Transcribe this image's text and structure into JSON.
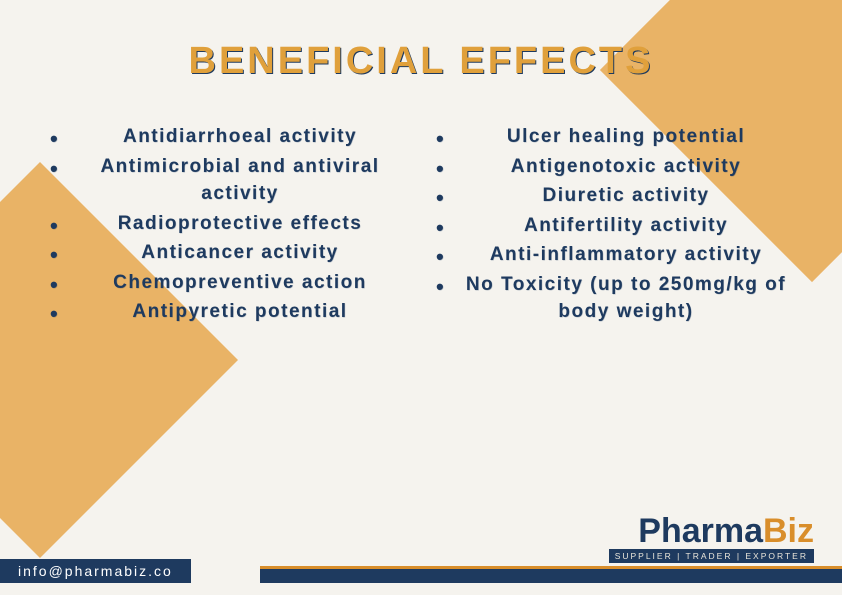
{
  "title": "BENEFICIAL EFFECTS",
  "colors": {
    "background": "#f5f3ee",
    "accent_shape": "#e9b366",
    "title_color": "#e0a03b",
    "title_shadow": "#1e3a5f",
    "text_color": "#1e3a5f",
    "footer_bg": "#1e3a5f",
    "logo_accent": "#d98e2b"
  },
  "typography": {
    "title_fontsize": 38,
    "title_weight": 900,
    "title_letterspacing": 3,
    "list_fontsize": 19,
    "list_weight": 700,
    "list_letterspacing": 1.5
  },
  "leftColumn": {
    "items": [
      "Antidiarrhoeal activity",
      "Antimicrobial and antiviral activity",
      "Radioprotective effects",
      "Anticancer activity",
      "Chemopreventive action",
      "Antipyretic potential"
    ]
  },
  "rightColumn": {
    "items": [
      "Ulcer healing potential",
      "Antigenotoxic activity",
      "Diuretic activity",
      "Antifertility activity",
      "Anti-inflammatory activity",
      "No Toxicity (up to 250mg/kg of body weight)"
    ]
  },
  "logo": {
    "prefix": "Pharma",
    "suffix": "Biz",
    "tagline": "SUPPLIER | TRADER | EXPORTER"
  },
  "footer": {
    "email": "info@pharmabiz.co"
  }
}
